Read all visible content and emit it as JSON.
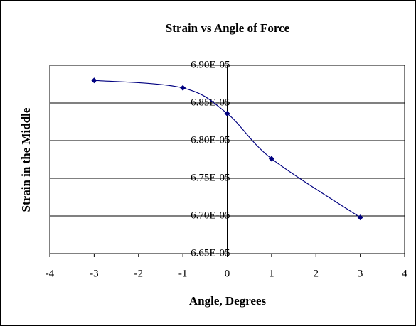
{
  "chart_data": {
    "type": "line",
    "title": "Strain vs Angle of Force",
    "x_label": "Angle, Degrees",
    "y_label": "Strain in the Middle",
    "x": [
      -3,
      -1,
      0,
      1,
      3
    ],
    "series": [
      {
        "name": "Strain",
        "color": "#000080",
        "values": [
          6.88e-05,
          6.87e-05,
          6.836e-05,
          6.776e-05,
          6.698e-05
        ]
      }
    ],
    "xlim": [
      -4,
      4
    ],
    "xticks": [
      -4,
      -3,
      -2,
      -1,
      0,
      1,
      2,
      3,
      4
    ],
    "ylim": [
      6.65e-05,
      6.9e-05
    ],
    "yticks": [
      {
        "value": 6.65e-05,
        "label": "6.65E-05"
      },
      {
        "value": 6.7e-05,
        "label": "6.70E-05"
      },
      {
        "value": 6.75e-05,
        "label": "6.75E-05"
      },
      {
        "value": 6.8e-05,
        "label": "6.80E-05"
      },
      {
        "value": 6.85e-05,
        "label": "6.85E-05"
      },
      {
        "value": 6.9e-05,
        "label": "6.90E-05"
      }
    ],
    "grid": true,
    "smooth": true
  }
}
